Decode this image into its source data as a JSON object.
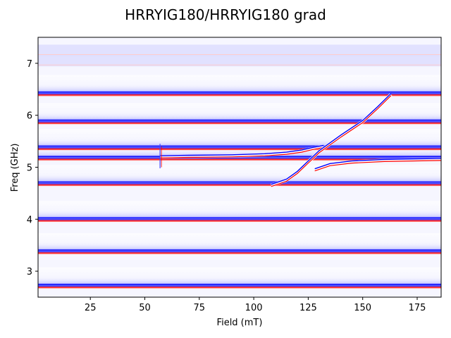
{
  "chart_data": {
    "type": "heatmap",
    "title": "HRRYIG180/HRRYIG180 grad",
    "xlabel": "Field (mT)",
    "ylabel": "Freq (GHz)",
    "xlim": [
      1,
      186
    ],
    "ylim": [
      2.5,
      7.5
    ],
    "xticks": [
      25,
      50,
      75,
      100,
      125,
      150,
      175
    ],
    "yticks": [
      3,
      4,
      5,
      6,
      7
    ],
    "colormap": "bwr",
    "colors": {
      "positive": "#ff0000",
      "negative": "#0000ff",
      "zero": "#ffffff"
    },
    "grid": false,
    "horizontal_modes_ghz": [
      2.72,
      3.38,
      4.0,
      4.69,
      5.18,
      5.38,
      5.88,
      6.42
    ],
    "faint_modes_ghz": [
      7.05,
      7.25
    ],
    "anticrossing_branches": [
      {
        "name": "",
        "points": [
          [
            57,
            5.2
          ],
          [
            70,
            5.21
          ],
          [
            90,
            5.22
          ],
          [
            105,
            5.24
          ],
          [
            115,
            5.27
          ],
          [
            122,
            5.31
          ],
          [
            127,
            5.36
          ],
          [
            132,
            5.4
          ]
        ]
      },
      {
        "name": "",
        "points": [
          [
            108,
            4.65
          ],
          [
            115,
            4.75
          ],
          [
            120,
            4.9
          ],
          [
            125,
            5.1
          ],
          [
            130,
            5.3
          ],
          [
            140,
            5.6
          ],
          [
            150,
            5.88
          ],
          [
            157,
            6.15
          ],
          [
            163,
            6.4
          ]
        ]
      },
      {
        "name": "",
        "points": [
          [
            128,
            4.95
          ],
          [
            135,
            5.05
          ],
          [
            145,
            5.1
          ],
          [
            160,
            5.13
          ],
          [
            186,
            5.15
          ]
        ]
      }
    ],
    "vertical_feature_mT": [
      57
    ]
  }
}
